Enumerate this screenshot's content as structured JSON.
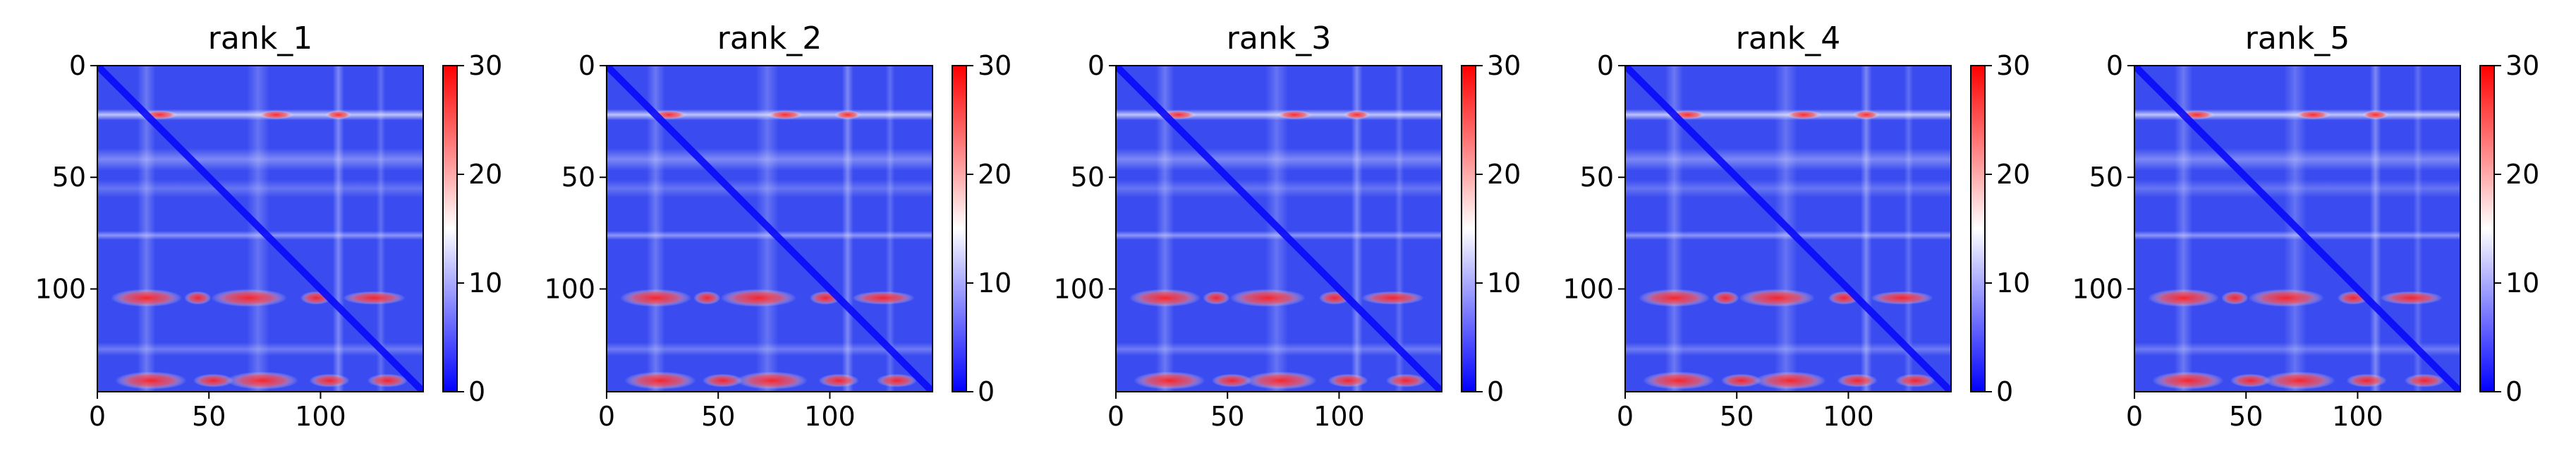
{
  "chart_data": [
    {
      "type": "heatmap",
      "title": "rank_1",
      "xticks": [
        0,
        50,
        100
      ],
      "yticks": [
        0,
        50,
        100
      ],
      "xlim": [
        0,
        146
      ],
      "ylim": [
        146,
        0
      ],
      "colorbar": {
        "ticks": [
          0,
          10,
          20,
          30
        ],
        "range": [
          0,
          30
        ],
        "colormap": "bwr"
      }
    },
    {
      "type": "heatmap",
      "title": "rank_2",
      "xticks": [
        0,
        50,
        100
      ],
      "yticks": [
        0,
        50,
        100
      ],
      "xlim": [
        0,
        146
      ],
      "ylim": [
        146,
        0
      ],
      "colorbar": {
        "ticks": [
          0,
          10,
          20,
          30
        ],
        "range": [
          0,
          30
        ],
        "colormap": "bwr"
      }
    },
    {
      "type": "heatmap",
      "title": "rank_3",
      "xticks": [
        0,
        50,
        100
      ],
      "yticks": [
        0,
        50,
        100
      ],
      "xlim": [
        0,
        146
      ],
      "ylim": [
        146,
        0
      ],
      "colorbar": {
        "ticks": [
          0,
          10,
          20,
          30
        ],
        "range": [
          0,
          30
        ],
        "colormap": "bwr"
      }
    },
    {
      "type": "heatmap",
      "title": "rank_4",
      "xticks": [
        0,
        50,
        100
      ],
      "yticks": [
        0,
        50,
        100
      ],
      "xlim": [
        0,
        146
      ],
      "ylim": [
        146,
        0
      ],
      "colorbar": {
        "ticks": [
          0,
          10,
          20,
          30
        ],
        "range": [
          0,
          30
        ],
        "colormap": "bwr"
      }
    },
    {
      "type": "heatmap",
      "title": "rank_5",
      "xticks": [
        0,
        50,
        100
      ],
      "yticks": [
        0,
        50,
        100
      ],
      "xlim": [
        0,
        146
      ],
      "ylim": [
        146,
        0
      ],
      "colorbar": {
        "ticks": [
          0,
          10,
          20,
          30
        ],
        "range": [
          0,
          30
        ],
        "colormap": "bwr"
      }
    }
  ],
  "colors": {
    "low": "#0000ff",
    "mid": "#ffffff",
    "high": "#ff0000",
    "heat_base": "#3a4cf0"
  }
}
